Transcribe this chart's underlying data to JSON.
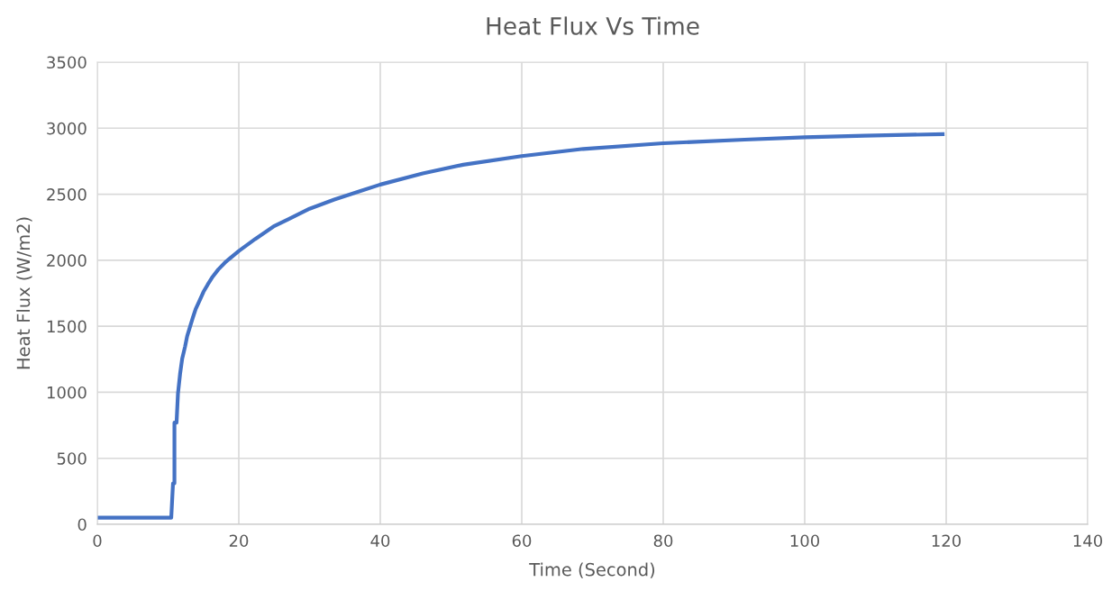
{
  "chart_data": {
    "type": "line",
    "title": "Heat Flux Vs Time",
    "xlabel": "Time (Second)",
    "ylabel": "Heat Flux (W/m2)",
    "series": [
      {
        "color": "#4472c4",
        "x": [
          0,
          5,
          10.45,
          10.7,
          10.9,
          10.9,
          11.2,
          11.4,
          11.7,
          12.0,
          12.4,
          12.7,
          13.1,
          13.5,
          13.9,
          14.5,
          15.0,
          15.6,
          16.3,
          17.1,
          18.2,
          20,
          22.3,
          24.9,
          27.0,
          30.0,
          33.5,
          37.2,
          40,
          46,
          51.7,
          60,
          68.7,
          80,
          91.5,
          100,
          108.5,
          119.5
        ],
        "values": [
          50,
          50,
          50,
          310,
          310,
          770,
          770,
          990,
          1140,
          1255,
          1345,
          1425,
          1495,
          1565,
          1630,
          1700,
          1760,
          1815,
          1875,
          1930,
          1990,
          2070,
          2160,
          2255,
          2310,
          2390,
          2460,
          2525,
          2573,
          2657,
          2723,
          2789,
          2843,
          2886,
          2913,
          2931,
          2943,
          2955
        ]
      }
    ],
    "xlim": [
      0,
      140
    ],
    "xticks": [
      0,
      20,
      40,
      60,
      80,
      100,
      120,
      140
    ],
    "ylim": [
      0,
      3500
    ],
    "yticks": [
      0,
      500,
      1000,
      1500,
      2000,
      2500,
      3000,
      3500
    ],
    "grid": true,
    "marker": "none",
    "line_style": "solid"
  }
}
